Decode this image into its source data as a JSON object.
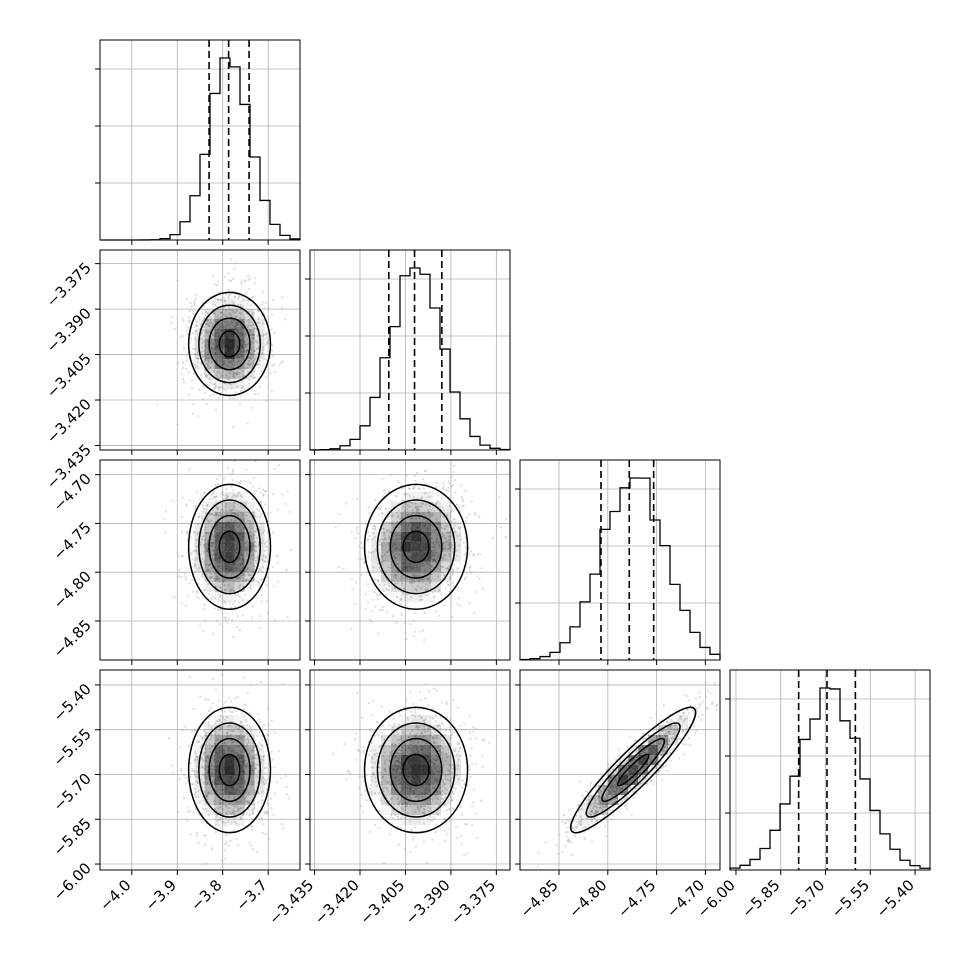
{
  "chart_data": {
    "type": "corner",
    "parameters": [
      {
        "mean": -3.785,
        "sd": 0.045,
        "range": [
          -4.07,
          -3.63
        ],
        "ticks": [
          -4.0,
          -3.9,
          -3.8,
          -3.7
        ],
        "tick_labels": [
          "−4.0",
          "−3.9",
          "−3.8",
          "−3.7"
        ],
        "quantiles": [
          -3.83,
          -3.787,
          -3.742
        ]
      },
      {
        "mean": -3.4015,
        "sd": 0.0085,
        "range": [
          -3.4365,
          -3.3705
        ],
        "ticks": [
          -3.435,
          -3.42,
          -3.405,
          -3.39,
          -3.375
        ],
        "tick_labels": [
          "−3.435",
          "−3.420",
          "−3.405",
          "−3.390",
          "−3.375"
        ],
        "quantiles": [
          -3.4105,
          -3.402,
          -3.393
        ]
      },
      {
        "mean": -4.774,
        "sd": 0.032,
        "range": [
          -4.89,
          -4.685
        ],
        "ticks": [
          -4.85,
          -4.8,
          -4.75,
          -4.7
        ],
        "tick_labels": [
          "−4.85",
          "−4.80",
          "−4.75",
          "−4.70"
        ],
        "quantiles": [
          -4.807,
          -4.778,
          -4.753
        ]
      },
      {
        "mean": -5.685,
        "sd": 0.105,
        "range": [
          -6.02,
          -5.35
        ],
        "ticks": [
          -6.0,
          -5.85,
          -5.7,
          -5.55,
          -5.4
        ],
        "tick_labels": [
          "−6.00",
          "−5.85",
          "−5.70",
          "−5.55",
          "−5.40"
        ],
        "quantiles": [
          -5.79,
          -5.695,
          -5.6
        ]
      }
    ],
    "correlations": [
      [
        0,
        1,
        0.05
      ],
      [
        0,
        2,
        0.05
      ],
      [
        1,
        2,
        0.1
      ],
      [
        0,
        3,
        0.0
      ],
      [
        1,
        3,
        0.0
      ],
      [
        2,
        3,
        0.92
      ]
    ],
    "contour_levels_sigma": [
      0.5,
      1.0,
      1.5,
      2.0
    ],
    "grid": true,
    "colors": {
      "hist": "#000000",
      "contour": "#000000",
      "density": "#000000",
      "scatter": "#9a9a9a"
    }
  }
}
